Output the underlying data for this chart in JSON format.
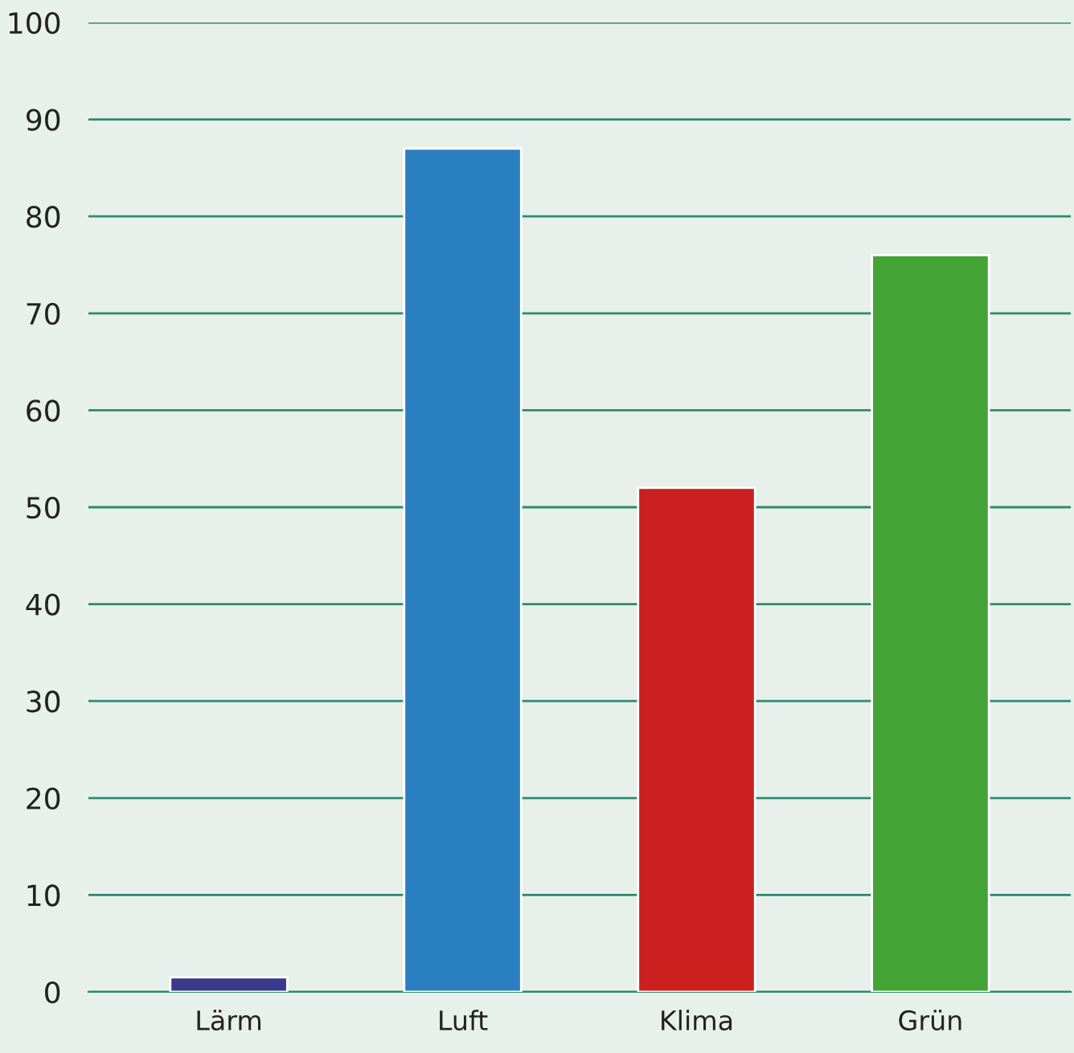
{
  "chart_data": {
    "type": "bar",
    "categories": [
      "Lärm",
      "Luft",
      "Klima",
      "Grün"
    ],
    "values": [
      1.5,
      87,
      52,
      76
    ],
    "colors": [
      "#3a3a8c",
      "#2a7fc1",
      "#cc1f1f",
      "#43a335"
    ],
    "ylim": [
      0,
      100
    ],
    "yticks": [
      0,
      10,
      20,
      30,
      40,
      50,
      60,
      70,
      80,
      90,
      100
    ],
    "grid": "y"
  }
}
